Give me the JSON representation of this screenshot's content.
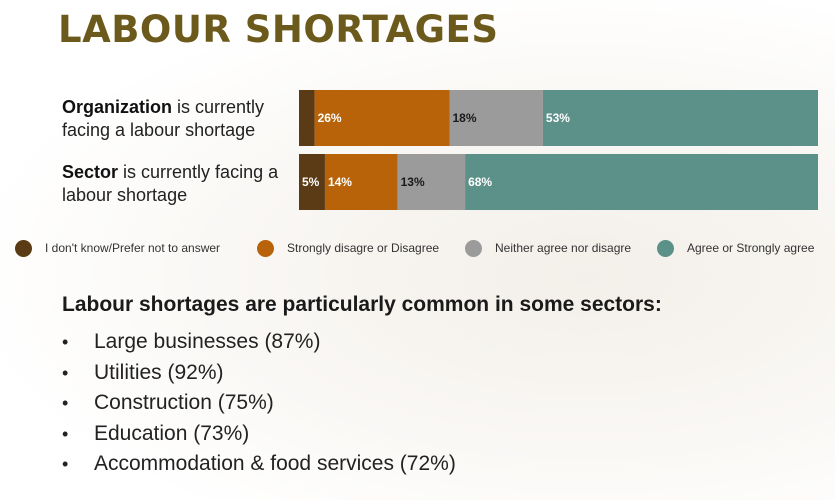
{
  "title": "LABOUR SHORTAGES",
  "chart_data": {
    "type": "bar",
    "orientation": "horizontal",
    "stacked": true,
    "categories": [
      {
        "bold": "Organization",
        "rest": " is currently facing a labour shortage"
      },
      {
        "bold": "Sector",
        "rest": " is currently facing a labour shortage"
      }
    ],
    "series": [
      {
        "name": "I don't know/Prefer not to answer",
        "color": "#5b3b16",
        "values": [
          3,
          5
        ],
        "labels": [
          "",
          "5%"
        ]
      },
      {
        "name": "Strongly disagre or Disagree",
        "color": "#b86309",
        "values": [
          26,
          14
        ],
        "labels": [
          "26%",
          "14%"
        ]
      },
      {
        "name": "Neither agree nor disagre",
        "color": "#9b9b9b",
        "values": [
          18,
          13
        ],
        "labels": [
          "18%",
          "13%"
        ]
      },
      {
        "name": "Agree or Strongly agree",
        "color": "#5c9189",
        "values": [
          53,
          68
        ],
        "labels": [
          "53%",
          "68%"
        ]
      }
    ],
    "xlim": [
      0,
      100
    ],
    "legend": "bottom"
  },
  "subheading": "Labour shortages are particularly common in some sectors:",
  "bullets": [
    "Large businesses (87%)",
    "Utilities (92%)",
    "Construction (75%)",
    "Education (73%)",
    "Accommodation & food services (72%)"
  ]
}
